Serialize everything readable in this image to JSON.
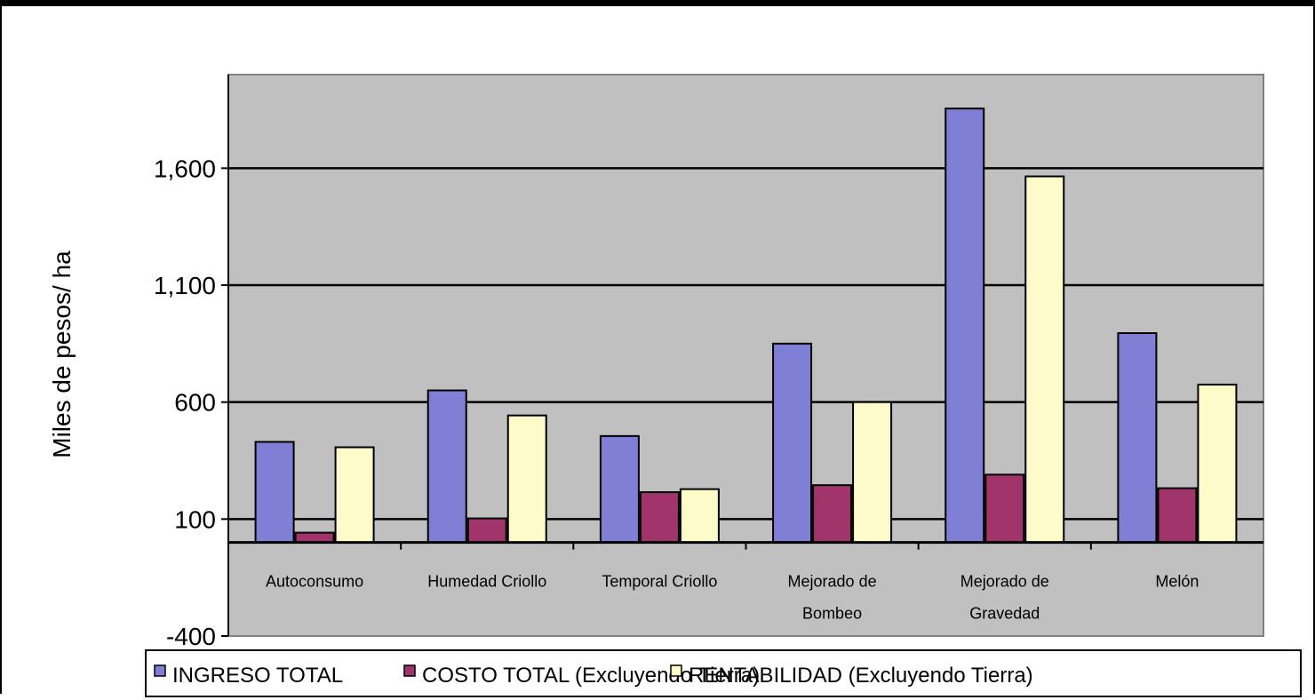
{
  "chart_data": {
    "type": "bar",
    "title": "",
    "xlabel": "",
    "ylabel": "Miles de pesos/ ha",
    "ylim": [
      -400,
      2000
    ],
    "yticks": [
      -400,
      100,
      600,
      1100,
      1600
    ],
    "ytick_labels": [
      "-400",
      "100",
      "600",
      "1,100",
      "1,600"
    ],
    "grid": true,
    "legend_position": "bottom",
    "categories": [
      [
        "Autoconsumo"
      ],
      [
        "Humedad Criollo"
      ],
      [
        "Temporal Criollo"
      ],
      [
        "Mejorado de",
        "Bombeo"
      ],
      [
        "Mejorado de",
        "Gravedad"
      ],
      [
        "Melón"
      ]
    ],
    "series": [
      {
        "name": "INGRESO TOTAL",
        "color": "#7f7fd6",
        "values": [
          430,
          650,
          455,
          850,
          1855,
          895
        ]
      },
      {
        "name": "COSTO TOTAL (Excluyendo Tierra)",
        "color": "#a0346b",
        "values": [
          42,
          103,
          215,
          245,
          290,
          232
        ]
      },
      {
        "name": "RENTABILIDAD (Excluyendo Tierra)",
        "color": "#fdfbc9",
        "values": [
          407,
          543,
          228,
          600,
          1565,
          675
        ]
      }
    ],
    "colors": {
      "plot_background": "#c0c0c0",
      "axis": "#000000",
      "bar_outline": "#000000"
    }
  }
}
